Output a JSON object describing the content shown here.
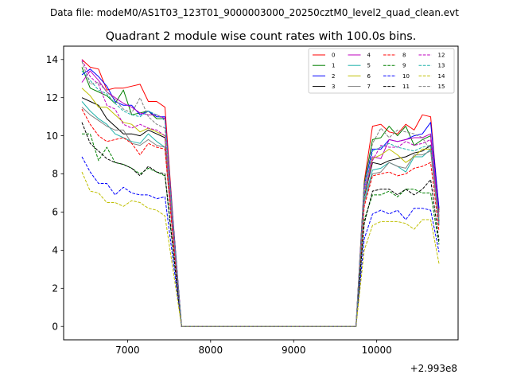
{
  "suptitle": "Data file: modeM0/AS1T03_123T01_9000003000_20250cztM0_level2_quad_clean.evt",
  "chart_data": {
    "type": "line",
    "title": "Quadrant 2 module wise count rates with 100.0s bins.",
    "xlabel": "",
    "ylabel": "",
    "x_offset_label": "+2.993e8",
    "xlim": [
      6230,
      10980
    ],
    "ylim": [
      -0.7,
      14.7
    ],
    "x_ticks": [
      7000,
      8000,
      9000,
      10000
    ],
    "x_tick_labels": [
      "7000",
      "8000",
      "9000",
      "10000"
    ],
    "y_ticks": [
      0,
      2,
      4,
      6,
      8,
      10,
      12,
      14
    ],
    "y_tick_labels": [
      "0",
      "2",
      "4",
      "6",
      "8",
      "10",
      "12",
      "14"
    ],
    "grid": false,
    "legend_position": "top-right",
    "x": [
      6450,
      6550,
      6650,
      6750,
      6850,
      6950,
      7050,
      7150,
      7250,
      7350,
      7450,
      7550,
      7650,
      7750,
      7850,
      7950,
      8050,
      8150,
      8250,
      8350,
      8450,
      8550,
      8650,
      8750,
      8850,
      8950,
      9050,
      9150,
      9250,
      9350,
      9450,
      9550,
      9650,
      9750,
      9850,
      9950,
      10050,
      10150,
      10250,
      10350,
      10450,
      10550,
      10650,
      10750
    ],
    "series": [
      {
        "name": "0",
        "color": "#ff0000",
        "dash": "solid",
        "values": [
          14.0,
          13.6,
          13.5,
          12.4,
          12.5,
          12.5,
          12.6,
          12.7,
          11.8,
          11.8,
          11.5,
          5.5,
          0.0,
          0.0,
          0.0,
          0.0,
          0.0,
          0.0,
          0.0,
          0.0,
          0.0,
          0.0,
          0.0,
          0.0,
          0.0,
          0.0,
          0.0,
          0.0,
          0.0,
          0.0,
          0.0,
          0.0,
          0.0,
          0.0,
          7.6,
          10.5,
          10.6,
          10.2,
          10.1,
          10.6,
          10.3,
          11.1,
          11.0,
          6.1
        ]
      },
      {
        "name": "1",
        "color": "#008000",
        "dash": "solid",
        "values": [
          13.6,
          12.5,
          12.3,
          12.1,
          11.7,
          12.4,
          11.1,
          11.2,
          11.3,
          10.9,
          10.9,
          5.4,
          0.0,
          0.0,
          0.0,
          0.0,
          0.0,
          0.0,
          0.0,
          0.0,
          0.0,
          0.0,
          0.0,
          0.0,
          0.0,
          0.0,
          0.0,
          0.0,
          0.0,
          0.0,
          0.0,
          0.0,
          0.0,
          0.0,
          7.5,
          9.8,
          9.9,
          10.5,
          10.0,
          10.5,
          9.5,
          9.8,
          10.0,
          6.0
        ]
      },
      {
        "name": "2",
        "color": "#0000ff",
        "dash": "solid",
        "values": [
          13.2,
          13.5,
          13.1,
          12.6,
          11.8,
          11.6,
          11.6,
          11.1,
          11.3,
          11.0,
          11.0,
          5.4,
          0.0,
          0.0,
          0.0,
          0.0,
          0.0,
          0.0,
          0.0,
          0.0,
          0.0,
          0.0,
          0.0,
          0.0,
          0.0,
          0.0,
          0.0,
          0.0,
          0.0,
          0.0,
          0.0,
          0.0,
          0.0,
          0.0,
          7.4,
          9.3,
          9.3,
          9.8,
          9.7,
          9.8,
          10.0,
          10.1,
          10.7,
          6.2
        ]
      },
      {
        "name": "3",
        "color": "#000000",
        "dash": "solid",
        "values": [
          12.0,
          11.8,
          11.6,
          10.9,
          10.5,
          10.1,
          10.1,
          10.0,
          10.3,
          10.1,
          9.9,
          4.8,
          0.0,
          0.0,
          0.0,
          0.0,
          0.0,
          0.0,
          0.0,
          0.0,
          0.0,
          0.0,
          0.0,
          0.0,
          0.0,
          0.0,
          0.0,
          0.0,
          0.0,
          0.0,
          0.0,
          0.0,
          0.0,
          0.0,
          6.8,
          8.6,
          8.5,
          8.7,
          8.8,
          8.9,
          9.1,
          9.2,
          9.5,
          5.5
        ]
      },
      {
        "name": "4",
        "color": "#bf00bf",
        "dash": "solid",
        "values": [
          12.8,
          13.4,
          12.9,
          12.3,
          12.0,
          11.7,
          11.5,
          11.2,
          11.1,
          11.1,
          10.9,
          5.3,
          0.0,
          0.0,
          0.0,
          0.0,
          0.0,
          0.0,
          0.0,
          0.0,
          0.0,
          0.0,
          0.0,
          0.0,
          0.0,
          0.0,
          0.0,
          0.0,
          0.0,
          0.0,
          0.0,
          0.0,
          0.0,
          0.0,
          7.2,
          8.9,
          8.8,
          9.8,
          9.7,
          9.8,
          9.9,
          9.9,
          10.1,
          5.8
        ]
      },
      {
        "name": "5",
        "color": "#20b2aa",
        "dash": "solid",
        "values": [
          11.8,
          11.3,
          10.9,
          10.6,
          10.1,
          9.9,
          9.7,
          9.6,
          10.1,
          9.7,
          9.4,
          4.7,
          0.0,
          0.0,
          0.0,
          0.0,
          0.0,
          0.0,
          0.0,
          0.0,
          0.0,
          0.0,
          0.0,
          0.0,
          0.0,
          0.0,
          0.0,
          0.0,
          0.0,
          0.0,
          0.0,
          0.0,
          0.0,
          0.0,
          6.6,
          8.2,
          8.3,
          8.6,
          8.4,
          8.1,
          8.9,
          8.9,
          9.3,
          5.3
        ]
      },
      {
        "name": "6",
        "color": "#bfbf00",
        "dash": "solid",
        "values": [
          12.5,
          12.1,
          11.5,
          11.5,
          11.1,
          10.7,
          10.6,
          10.2,
          10.4,
          10.2,
          10.0,
          4.9,
          0.0,
          0.0,
          0.0,
          0.0,
          0.0,
          0.0,
          0.0,
          0.0,
          0.0,
          0.0,
          0.0,
          0.0,
          0.0,
          0.0,
          0.0,
          0.0,
          0.0,
          0.0,
          0.0,
          0.0,
          0.0,
          0.0,
          6.9,
          8.8,
          9.0,
          9.3,
          9.0,
          8.6,
          8.9,
          9.3,
          9.3,
          5.6
        ]
      },
      {
        "name": "7",
        "color": "#808080",
        "dash": "solid",
        "values": [
          11.5,
          11.1,
          10.8,
          10.5,
          10.3,
          10.3,
          9.6,
          9.5,
          9.8,
          9.5,
          9.4,
          4.6,
          0.0,
          0.0,
          0.0,
          0.0,
          0.0,
          0.0,
          0.0,
          0.0,
          0.0,
          0.0,
          0.0,
          0.0,
          0.0,
          0.0,
          0.0,
          0.0,
          0.0,
          0.0,
          0.0,
          0.0,
          0.0,
          0.0,
          6.5,
          8.0,
          8.1,
          8.6,
          8.4,
          8.3,
          9.0,
          9.0,
          9.2,
          5.3
        ]
      },
      {
        "name": "8",
        "color": "#ff0000",
        "dash": "dashed",
        "values": [
          11.4,
          10.6,
          10.0,
          9.7,
          9.8,
          9.9,
          9.6,
          9.0,
          9.6,
          9.4,
          9.3,
          4.5,
          0.0,
          0.0,
          0.0,
          0.0,
          0.0,
          0.0,
          0.0,
          0.0,
          0.0,
          0.0,
          0.0,
          0.0,
          0.0,
          0.0,
          0.0,
          0.0,
          0.0,
          0.0,
          0.0,
          0.0,
          0.0,
          0.0,
          6.3,
          7.9,
          8.0,
          8.1,
          7.9,
          8.0,
          8.3,
          8.4,
          8.6,
          5.0
        ]
      },
      {
        "name": "9",
        "color": "#008000",
        "dash": "dashed",
        "values": [
          10.1,
          10.1,
          8.7,
          9.4,
          8.6,
          8.5,
          8.3,
          8.0,
          8.3,
          8.1,
          7.9,
          3.9,
          0.0,
          0.0,
          0.0,
          0.0,
          0.0,
          0.0,
          0.0,
          0.0,
          0.0,
          0.0,
          0.0,
          0.0,
          0.0,
          0.0,
          0.0,
          0.0,
          0.0,
          0.0,
          0.0,
          0.0,
          0.0,
          0.0,
          5.6,
          6.9,
          6.9,
          7.1,
          6.8,
          7.2,
          7.2,
          7.0,
          7.0,
          4.3
        ]
      },
      {
        "name": "10",
        "color": "#0000ff",
        "dash": "dashed",
        "values": [
          8.9,
          8.1,
          7.5,
          7.5,
          6.9,
          7.3,
          7.0,
          6.9,
          6.9,
          6.7,
          6.8,
          3.4,
          0.0,
          0.0,
          0.0,
          0.0,
          0.0,
          0.0,
          0.0,
          0.0,
          0.0,
          0.0,
          0.0,
          0.0,
          0.0,
          0.0,
          0.0,
          0.0,
          0.0,
          0.0,
          0.0,
          0.0,
          0.0,
          0.0,
          4.6,
          5.9,
          6.1,
          5.9,
          6.1,
          5.6,
          6.2,
          6.2,
          6.1,
          3.9
        ]
      },
      {
        "name": "11",
        "color": "#000000",
        "dash": "dashed",
        "values": [
          10.7,
          9.6,
          9.2,
          8.8,
          8.6,
          8.5,
          8.3,
          7.9,
          8.4,
          8.1,
          8.0,
          4.0,
          0.0,
          0.0,
          0.0,
          0.0,
          0.0,
          0.0,
          0.0,
          0.0,
          0.0,
          0.0,
          0.0,
          0.0,
          0.0,
          0.0,
          0.0,
          0.0,
          0.0,
          0.0,
          0.0,
          0.0,
          0.0,
          0.0,
          5.4,
          7.1,
          7.2,
          7.2,
          6.9,
          7.2,
          6.9,
          7.2,
          7.7,
          4.5
        ]
      },
      {
        "name": "12",
        "color": "#bf00bf",
        "dash": "dashed",
        "values": [
          14.0,
          13.1,
          12.7,
          11.6,
          11.4,
          10.6,
          10.4,
          10.6,
          10.4,
          10.3,
          10.0,
          4.9,
          0.0,
          0.0,
          0.0,
          0.0,
          0.0,
          0.0,
          0.0,
          0.0,
          0.0,
          0.0,
          0.0,
          0.0,
          0.0,
          0.0,
          0.0,
          0.0,
          0.0,
          0.0,
          0.0,
          0.0,
          0.0,
          0.0,
          6.9,
          8.7,
          9.5,
          9.4,
          9.4,
          9.7,
          9.5,
          9.6,
          9.8,
          5.5
        ]
      },
      {
        "name": "13",
        "color": "#20b2aa",
        "dash": "dashed",
        "values": [
          13.4,
          12.9,
          12.4,
          12.2,
          11.7,
          11.3,
          11.1,
          11.0,
          11.3,
          11.1,
          10.8,
          5.3,
          0.0,
          0.0,
          0.0,
          0.0,
          0.0,
          0.0,
          0.0,
          0.0,
          0.0,
          0.0,
          0.0,
          0.0,
          0.0,
          0.0,
          0.0,
          0.0,
          0.0,
          0.0,
          0.0,
          0.0,
          0.0,
          0.0,
          7.0,
          9.2,
          9.4,
          9.6,
          9.4,
          9.3,
          9.2,
          9.4,
          9.5,
          5.4
        ]
      },
      {
        "name": "14",
        "color": "#bfbf00",
        "dash": "dashed",
        "values": [
          8.1,
          7.1,
          7.0,
          6.5,
          6.5,
          6.3,
          6.6,
          6.5,
          6.2,
          6.1,
          5.8,
          2.9,
          0.0,
          0.0,
          0.0,
          0.0,
          0.0,
          0.0,
          0.0,
          0.0,
          0.0,
          0.0,
          0.0,
          0.0,
          0.0,
          0.0,
          0.0,
          0.0,
          0.0,
          0.0,
          0.0,
          0.0,
          0.0,
          0.0,
          4.0,
          5.3,
          5.5,
          5.5,
          5.5,
          5.4,
          5.1,
          5.6,
          5.6,
          3.3
        ]
      },
      {
        "name": "15",
        "color": "#808080",
        "dash": "dashed",
        "values": [
          13.9,
          12.7,
          12.8,
          12.3,
          11.9,
          11.4,
          11.2,
          12.0,
          11.0,
          10.6,
          10.4,
          5.1,
          0.0,
          0.0,
          0.0,
          0.0,
          0.0,
          0.0,
          0.0,
          0.0,
          0.0,
          0.0,
          0.0,
          0.0,
          0.0,
          0.0,
          0.0,
          0.0,
          0.0,
          0.0,
          0.0,
          0.0,
          0.0,
          0.0,
          7.4,
          9.6,
          10.4,
          9.9,
          10.3,
          10.2,
          10.1,
          9.9,
          9.2,
          5.7
        ]
      }
    ]
  }
}
